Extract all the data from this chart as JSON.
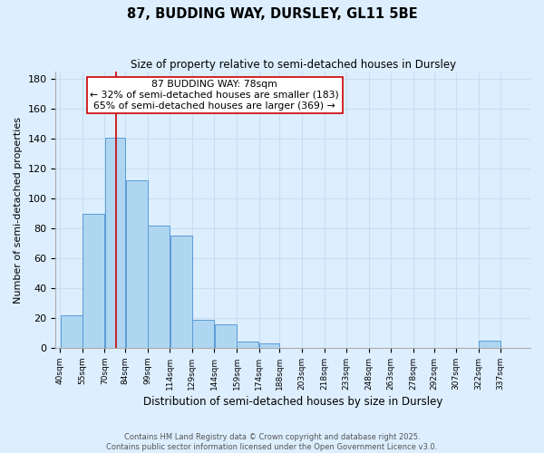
{
  "title": "87, BUDDING WAY, DURSLEY, GL11 5BE",
  "subtitle": "Size of property relative to semi-detached houses in Dursley",
  "xlabel": "Distribution of semi-detached houses by size in Dursley",
  "ylabel": "Number of semi-detached properties",
  "bin_labels": [
    "40sqm",
    "55sqm",
    "70sqm",
    "84sqm",
    "99sqm",
    "114sqm",
    "129sqm",
    "144sqm",
    "159sqm",
    "174sqm",
    "188sqm",
    "203sqm",
    "218sqm",
    "233sqm",
    "248sqm",
    "263sqm",
    "278sqm",
    "292sqm",
    "307sqm",
    "322sqm",
    "337sqm"
  ],
  "bin_edges": [
    40,
    55,
    70,
    84,
    99,
    114,
    129,
    144,
    159,
    174,
    188,
    203,
    218,
    233,
    248,
    263,
    278,
    292,
    307,
    322,
    337,
    352
  ],
  "bar_heights": [
    22,
    90,
    141,
    112,
    82,
    75,
    19,
    16,
    4,
    3,
    0,
    0,
    0,
    0,
    0,
    0,
    0,
    0,
    0,
    5,
    0
  ],
  "bar_color": "#aed6f1",
  "bar_edge_color": "#5b9bd5",
  "grid_color": "#c8dff0",
  "bg_color": "#ddeeff",
  "property_line_x": 78,
  "property_line_color": "#cc0000",
  "annotation_line1": "87 BUDDING WAY: 78sqm",
  "annotation_line2": "← 32% of semi-detached houses are smaller (183)",
  "annotation_line3": "65% of semi-detached houses are larger (369) →",
  "annotation_box_color": "#ffffff",
  "annotation_box_edge": "#cc0000",
  "ylim": [
    0,
    185
  ],
  "yticks": [
    0,
    20,
    40,
    60,
    80,
    100,
    120,
    140,
    160,
    180
  ],
  "footer1": "Contains HM Land Registry data © Crown copyright and database right 2025.",
  "footer2": "Contains public sector information licensed under the Open Government Licence v3.0."
}
